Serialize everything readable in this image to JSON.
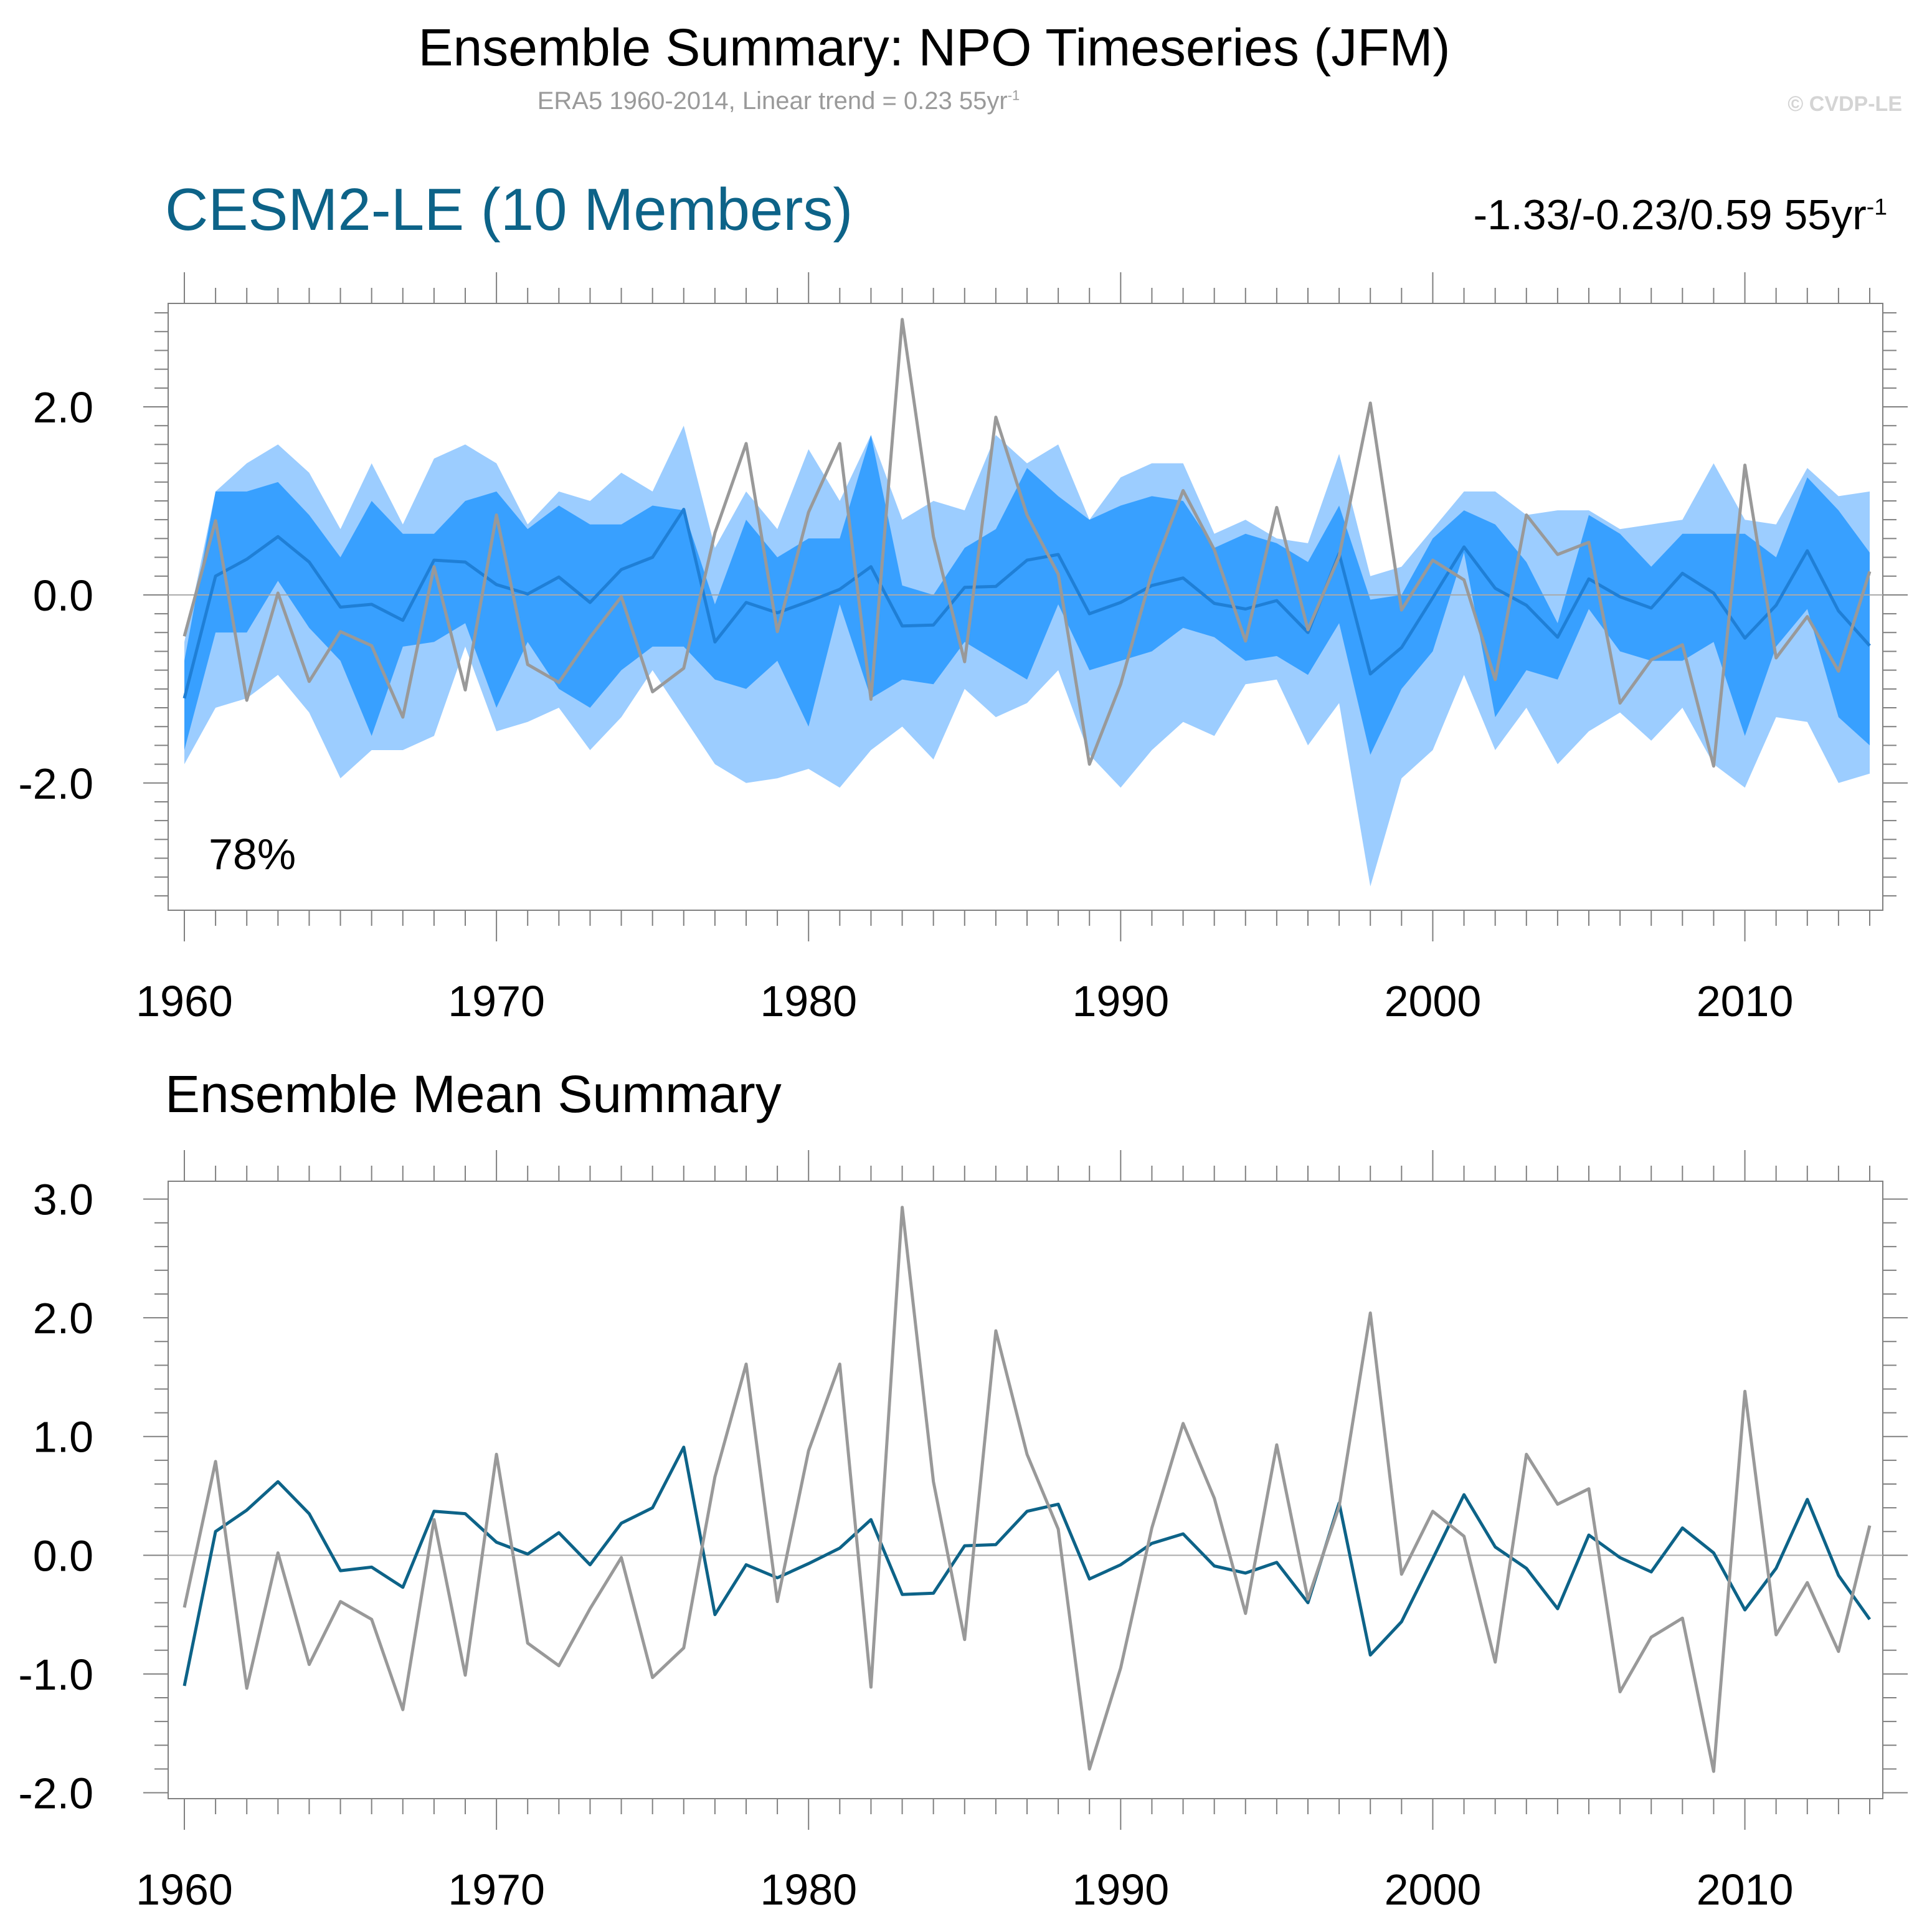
{
  "title": "Ensemble Summary: NPO Timeseries (JFM)",
  "subtitle": "ERA5 1960-2014, Linear trend = 0.23 55yr",
  "subtitle_sup": "-1",
  "copyright": "© CVDP-LE",
  "colors": {
    "ensemble_mean": "#0d6388",
    "band_inner": "#38a0ff",
    "band_outer": "#9ccdff",
    "observed": "#999999",
    "model_title": "#0d6388"
  },
  "chart_data": [
    {
      "type": "area",
      "title": "CESM2-LE (10 Members)",
      "trend_label": "-1.33/-0.23/0.59 55yr",
      "trend_sup": "-1",
      "annotation": "78%",
      "x": [
        1960,
        1961,
        1962,
        1963,
        1964,
        1965,
        1966,
        1967,
        1968,
        1969,
        1970,
        1971,
        1972,
        1973,
        1974,
        1975,
        1976,
        1977,
        1978,
        1979,
        1980,
        1981,
        1982,
        1983,
        1984,
        1985,
        1986,
        1987,
        1988,
        1989,
        1990,
        1991,
        1992,
        1993,
        1994,
        1995,
        1996,
        1997,
        1998,
        1999,
        2000,
        2001,
        2002,
        2003,
        2004,
        2005,
        2006,
        2007,
        2008,
        2009,
        2010,
        2011,
        2012,
        2013,
        2014
      ],
      "xlim": [
        1960,
        2014
      ],
      "ylim": [
        -3.3,
        3.1
      ],
      "xticks": [
        "1960",
        "1970",
        "1980",
        "1990",
        "2000",
        "2010"
      ],
      "yticks": [
        "2.0",
        "0.0",
        "-2.0"
      ],
      "series": [
        {
          "name": "ensemble_outer_max",
          "values": [
            -0.5,
            1.1,
            1.4,
            1.6,
            1.3,
            0.7,
            1.4,
            0.75,
            1.45,
            1.6,
            1.4,
            0.75,
            1.1,
            1.0,
            1.3,
            1.1,
            1.8,
            0.5,
            1.1,
            0.7,
            1.55,
            1.0,
            1.7,
            0.8,
            1.0,
            0.9,
            1.7,
            1.4,
            1.6,
            0.8,
            1.25,
            1.4,
            1.4,
            0.65,
            0.8,
            0.6,
            0.55,
            1.5,
            0.2,
            0.3,
            0.7,
            1.1,
            1.1,
            0.85,
            0.9,
            0.9,
            0.7,
            0.75,
            0.8,
            1.4,
            0.8,
            0.75,
            1.35,
            1.05,
            1.1
          ]
        },
        {
          "name": "ensemble_inner_max",
          "values": [
            -0.7,
            1.1,
            1.1,
            1.2,
            0.85,
            0.4,
            1.0,
            0.65,
            0.65,
            1.0,
            1.1,
            0.7,
            0.95,
            0.75,
            0.75,
            0.95,
            0.9,
            -0.1,
            0.8,
            0.4,
            0.6,
            0.6,
            1.7,
            0.1,
            0.0,
            0.5,
            0.7,
            1.35,
            1.05,
            0.8,
            0.95,
            1.05,
            1.0,
            0.5,
            0.65,
            0.55,
            0.35,
            0.95,
            -0.05,
            0.0,
            0.6,
            0.9,
            0.75,
            0.35,
            -0.3,
            0.85,
            0.65,
            0.3,
            0.65,
            0.65,
            0.65,
            0.4,
            1.25,
            0.9,
            0.45
          ]
        },
        {
          "name": "ensemble_inner_min",
          "values": [
            -1.65,
            -0.4,
            -0.4,
            0.15,
            -0.35,
            -0.7,
            -1.5,
            -0.55,
            -0.5,
            -0.3,
            -1.2,
            -0.5,
            -1.0,
            -1.2,
            -0.8,
            -0.55,
            -0.55,
            -0.9,
            -1.0,
            -0.7,
            -1.4,
            -0.1,
            -1.1,
            -0.9,
            -0.95,
            -0.5,
            -0.7,
            -0.9,
            -0.1,
            -0.8,
            -0.7,
            -0.6,
            -0.35,
            -0.45,
            -0.7,
            -0.65,
            -0.85,
            -0.3,
            -1.7,
            -1.0,
            -0.6,
            0.45,
            -1.3,
            -0.8,
            -0.9,
            -0.15,
            -0.6,
            -0.7,
            -0.7,
            -0.5,
            -1.5,
            -0.55,
            -0.15,
            -1.3,
            -1.6
          ]
        },
        {
          "name": "ensemble_outer_min",
          "values": [
            -1.8,
            -1.2,
            -1.1,
            -0.85,
            -1.25,
            -1.95,
            -1.65,
            -1.65,
            -1.5,
            -0.55,
            -1.45,
            -1.35,
            -1.2,
            -1.65,
            -1.3,
            -0.8,
            -1.3,
            -1.8,
            -2.0,
            -1.95,
            -1.85,
            -2.05,
            -1.65,
            -1.4,
            -1.75,
            -1.0,
            -1.3,
            -1.15,
            -0.8,
            -1.7,
            -2.05,
            -1.65,
            -1.35,
            -1.5,
            -0.95,
            -0.9,
            -1.6,
            -1.15,
            -3.1,
            -1.95,
            -1.65,
            -0.85,
            -1.65,
            -1.2,
            -1.8,
            -1.45,
            -1.25,
            -1.55,
            -1.2,
            -1.8,
            -2.05,
            -1.3,
            -1.35,
            -2.0,
            -1.9
          ]
        },
        {
          "name": "ensemble_mean",
          "values": [
            -1.1,
            0.2,
            0.38,
            0.62,
            0.35,
            -0.13,
            -0.1,
            -0.27,
            0.37,
            0.35,
            0.11,
            0.01,
            0.19,
            -0.08,
            0.27,
            0.4,
            0.91,
            -0.5,
            -0.08,
            -0.19,
            -0.07,
            0.06,
            0.3,
            -0.33,
            -0.32,
            0.08,
            0.09,
            0.37,
            0.43,
            -0.2,
            -0.08,
            0.1,
            0.18,
            -0.09,
            -0.15,
            -0.06,
            -0.4,
            0.44,
            -0.84,
            -0.56,
            -0.03,
            0.51,
            0.07,
            -0.11,
            -0.45,
            0.17,
            -0.02,
            -0.14,
            0.23,
            0.02,
            -0.46,
            -0.11,
            0.47,
            -0.17,
            -0.54
          ]
        },
        {
          "name": "observed",
          "values": [
            -0.44,
            0.79,
            -1.12,
            0.02,
            -0.92,
            -0.39,
            -0.54,
            -1.3,
            0.3,
            -1.01,
            0.85,
            -0.74,
            -0.93,
            -0.45,
            -0.02,
            -1.03,
            -0.78,
            0.66,
            1.61,
            -0.39,
            0.88,
            1.61,
            -1.11,
            2.93,
            0.62,
            -0.71,
            1.89,
            0.85,
            0.22,
            -1.8,
            -0.95,
            0.23,
            1.11,
            0.48,
            -0.49,
            0.93,
            -0.37,
            0.41,
            2.04,
            -0.16,
            0.37,
            0.16,
            -0.9,
            0.85,
            0.43,
            0.56,
            -1.15,
            -0.69,
            -0.53,
            -1.82,
            1.38,
            -0.67,
            -0.23,
            -0.81,
            0.25
          ]
        }
      ]
    },
    {
      "type": "line",
      "title": "Ensemble Mean Summary",
      "x": [
        1960,
        1961,
        1962,
        1963,
        1964,
        1965,
        1966,
        1967,
        1968,
        1969,
        1970,
        1971,
        1972,
        1973,
        1974,
        1975,
        1976,
        1977,
        1978,
        1979,
        1980,
        1981,
        1982,
        1983,
        1984,
        1985,
        1986,
        1987,
        1988,
        1989,
        1990,
        1991,
        1992,
        1993,
        1994,
        1995,
        1996,
        1997,
        1998,
        1999,
        2000,
        2001,
        2002,
        2003,
        2004,
        2005,
        2006,
        2007,
        2008,
        2009,
        2010,
        2011,
        2012,
        2013,
        2014
      ],
      "xlim": [
        1960,
        2014
      ],
      "ylim": [
        -2.05,
        3.15
      ],
      "xticks": [
        "1960",
        "1970",
        "1980",
        "1990",
        "2000",
        "2010"
      ],
      "yticks": [
        "3.0",
        "2.0",
        "1.0",
        "0.0",
        "-1.0",
        "-2.0"
      ],
      "series": [
        {
          "name": "ensemble_mean",
          "values": [
            -1.1,
            0.2,
            0.38,
            0.62,
            0.35,
            -0.13,
            -0.1,
            -0.27,
            0.37,
            0.35,
            0.11,
            0.01,
            0.19,
            -0.08,
            0.27,
            0.4,
            0.91,
            -0.5,
            -0.08,
            -0.19,
            -0.07,
            0.06,
            0.3,
            -0.33,
            -0.32,
            0.08,
            0.09,
            0.37,
            0.43,
            -0.2,
            -0.08,
            0.1,
            0.18,
            -0.09,
            -0.15,
            -0.06,
            -0.4,
            0.44,
            -0.84,
            -0.56,
            -0.03,
            0.51,
            0.07,
            -0.11,
            -0.45,
            0.17,
            -0.02,
            -0.14,
            0.23,
            0.02,
            -0.46,
            -0.11,
            0.47,
            -0.17,
            -0.54
          ]
        },
        {
          "name": "observed",
          "values": [
            -0.44,
            0.79,
            -1.12,
            0.02,
            -0.92,
            -0.39,
            -0.54,
            -1.3,
            0.3,
            -1.01,
            0.85,
            -0.74,
            -0.93,
            -0.45,
            -0.02,
            -1.03,
            -0.78,
            0.66,
            1.61,
            -0.39,
            0.88,
            1.61,
            -1.11,
            2.93,
            0.62,
            -0.71,
            1.89,
            0.85,
            0.22,
            -1.8,
            -0.95,
            0.23,
            1.11,
            0.48,
            -0.49,
            0.93,
            -0.37,
            0.41,
            2.04,
            -0.16,
            0.37,
            0.16,
            -0.9,
            0.85,
            0.43,
            0.56,
            -1.15,
            -0.69,
            -0.53,
            -1.82,
            1.38,
            -0.67,
            -0.23,
            -0.81,
            0.25
          ]
        }
      ]
    }
  ]
}
